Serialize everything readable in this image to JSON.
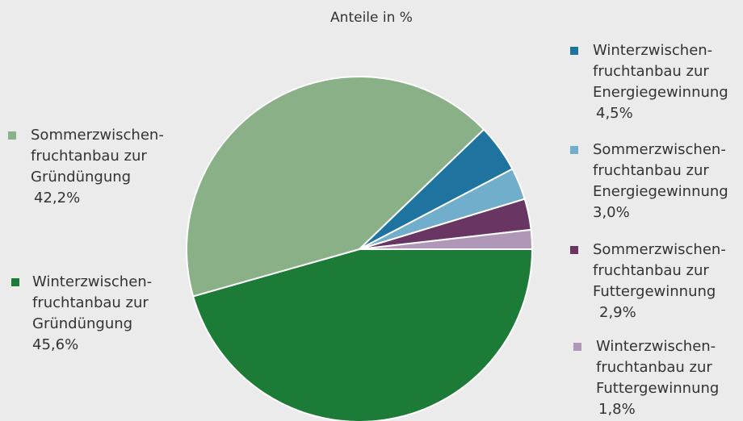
{
  "chart_data": {
    "type": "pie",
    "title": "Anteile in %",
    "slices": [
      {
        "label_lines": [
          "Winterzwischen-",
          "fruchtanbau zur",
          "Gründüngung"
        ],
        "value_label": "45,6%",
        "value": 45.6,
        "color": "#1c7c37"
      },
      {
        "label_lines": [
          "Sommerzwischen-",
          "fruchtanbau zur",
          "Gründüngung"
        ],
        "value_label": "42,2%",
        "value": 42.2,
        "color": "#8ab088"
      },
      {
        "label_lines": [
          "Winterzwischen-",
          "fruchtanbau zur",
          "Energiegewinnung"
        ],
        "value_label": "4,5%",
        "value": 4.5,
        "color": "#1e749e"
      },
      {
        "label_lines": [
          "Sommerzwischen-",
          "fruchtanbau zur",
          "Energiegewinnung"
        ],
        "value_label": "3,0%",
        "value": 3.0,
        "color": "#71aecb"
      },
      {
        "label_lines": [
          "Sommerzwischen-",
          "fruchtanbau zur",
          "Futtergewinnung"
        ],
        "value_label": "2,9%",
        "value": 2.9,
        "color": "#693562"
      },
      {
        "label_lines": [
          "Winterzwischen-",
          "fruchtanbau zur",
          "Futtergewinnung"
        ],
        "value_label": "1,8%",
        "value": 1.8,
        "color": "#b097b8"
      }
    ]
  }
}
